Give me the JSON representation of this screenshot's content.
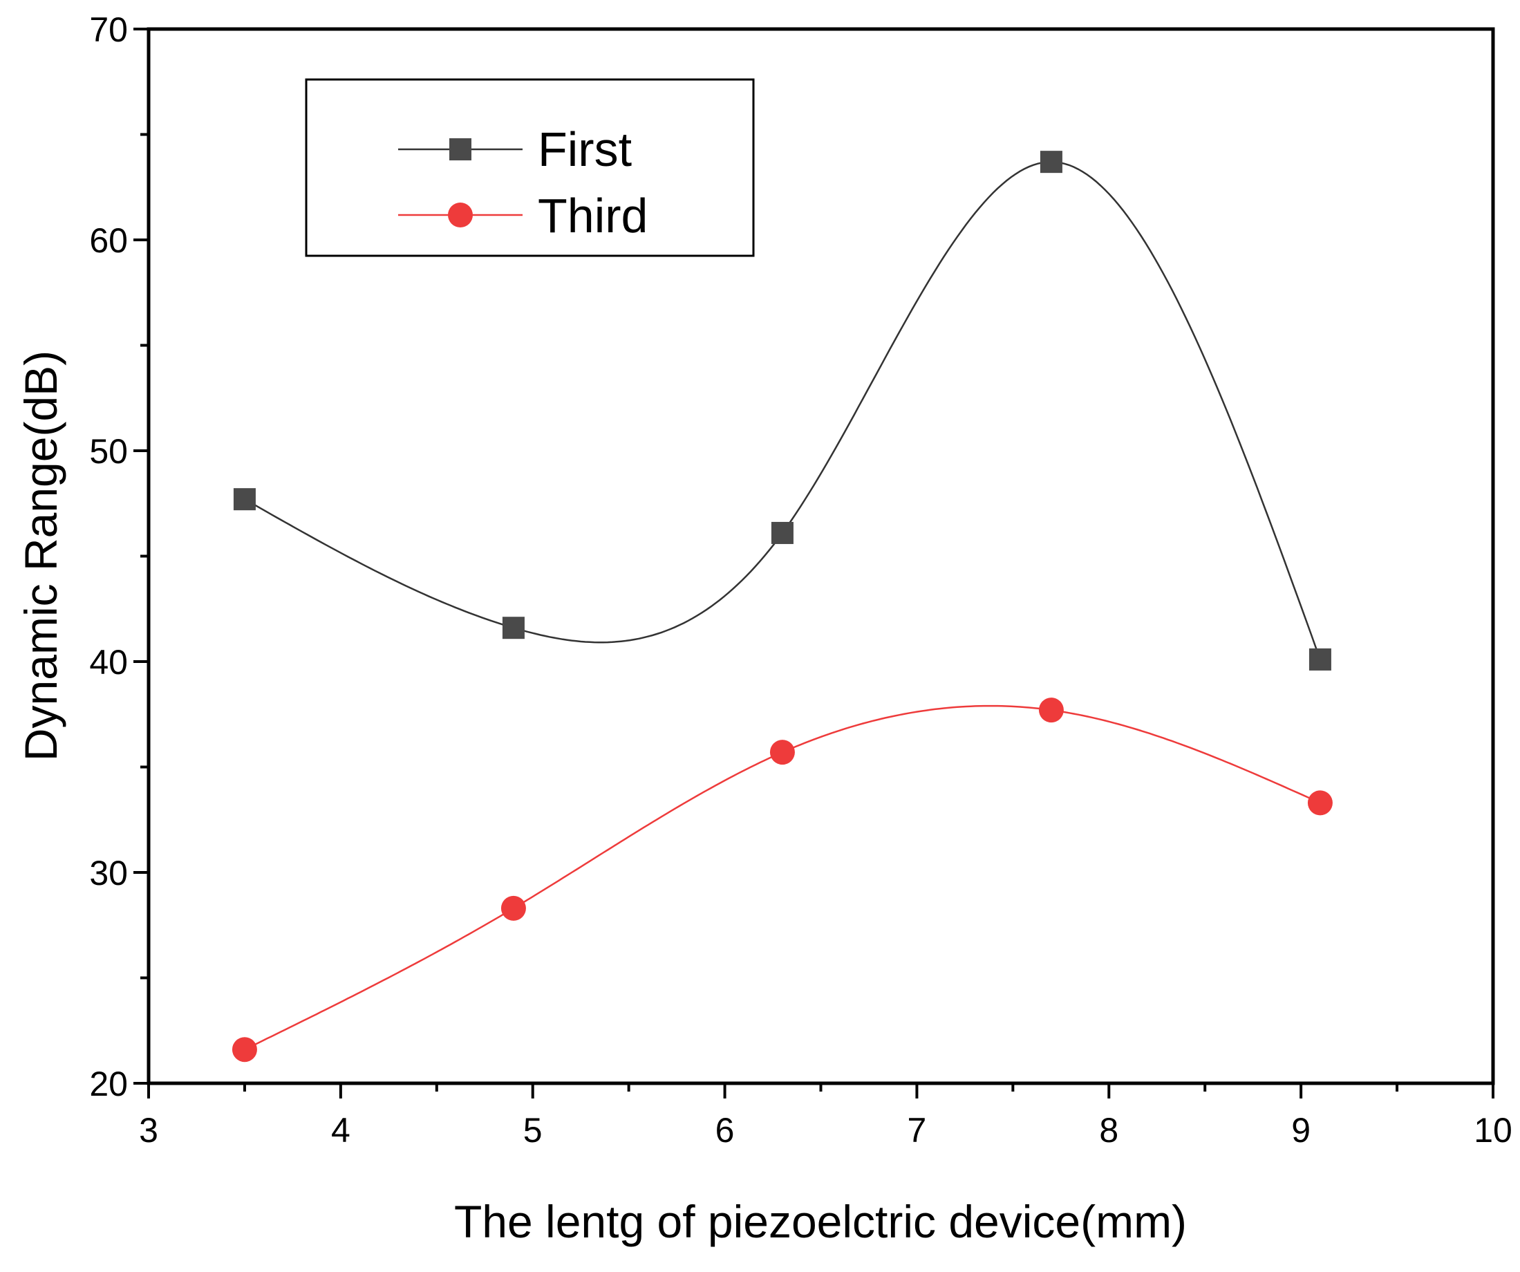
{
  "chart_data": {
    "type": "line",
    "title": "",
    "xlabel": "The lentg of piezoelctric device(mm)",
    "ylabel": "Dynamic Range(dB)",
    "xlim": [
      3,
      10
    ],
    "ylim": [
      20,
      70
    ],
    "xticks": [
      "3",
      "4",
      "5",
      "6",
      "7",
      "8",
      "9",
      "10"
    ],
    "yticks": [
      "20",
      "30",
      "40",
      "50",
      "60",
      "70"
    ],
    "x": [
      3.5,
      4.9,
      6.3,
      7.7,
      9.1
    ],
    "series": [
      {
        "name": "First",
        "marker": "square",
        "color": "#4a4a4a",
        "line_color": "#333333",
        "values": [
          47.7,
          41.6,
          46.1,
          63.7,
          40.1
        ]
      },
      {
        "name": "Third",
        "marker": "circle",
        "color": "#ee3b3b",
        "line_color": "#ee3b3b",
        "values": [
          21.6,
          28.3,
          35.7,
          37.7,
          33.3
        ]
      }
    ],
    "smooth": true,
    "grid": false,
    "legend_position": "top-left"
  }
}
